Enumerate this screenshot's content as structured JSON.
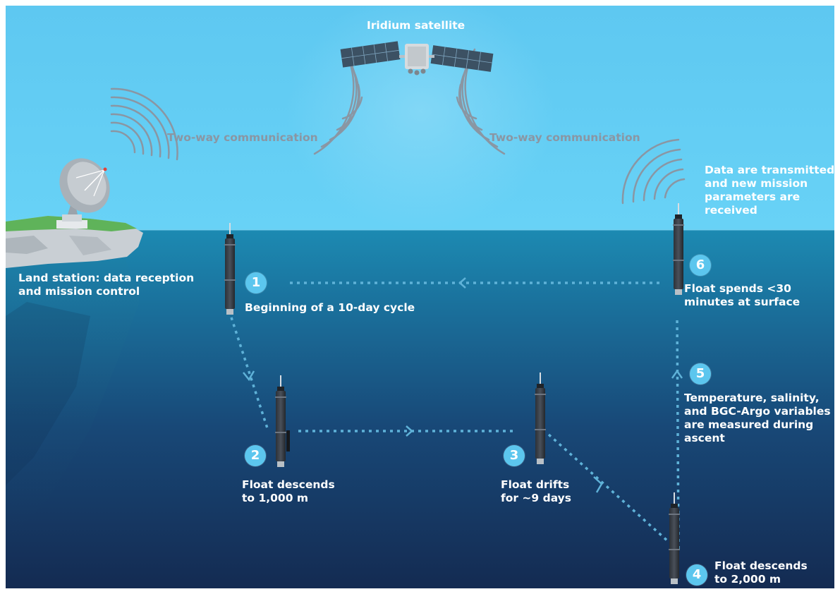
{
  "satellite": {
    "label": "Iridium satellite"
  },
  "communication": {
    "left": "Two-way communication",
    "right": "Two-way communication"
  },
  "land_station": {
    "line1": "Land station: data reception",
    "line2": "and mission control"
  },
  "transmit_note": {
    "line1": "Data are transmitted",
    "line2": "and new mission",
    "line3": "parameters are",
    "line4": "received"
  },
  "steps": [
    {
      "number": "1",
      "lines": [
        "Beginning of a 10-day cycle"
      ]
    },
    {
      "number": "2",
      "lines": [
        "Float descends",
        "to 1,000 m"
      ]
    },
    {
      "number": "3",
      "lines": [
        "Float drifts",
        "for ~9 days"
      ]
    },
    {
      "number": "4",
      "lines": [
        "Float descends",
        "to 2,000 m"
      ]
    },
    {
      "number": "5",
      "lines": [
        "Temperature, salinity,",
        "and BGC-Argo variables",
        "are measured during",
        "ascent"
      ]
    },
    {
      "number": "6",
      "lines": [
        "Float spends <30",
        "minutes at surface"
      ]
    }
  ],
  "colors": {
    "sky_top": "#5ec9f2",
    "sea_surface": "#1b86ad",
    "sea_deep": "#142f56",
    "path": "#5fb2d8",
    "badge": "#5cc6ee",
    "comm_text": "#8a96a3"
  }
}
